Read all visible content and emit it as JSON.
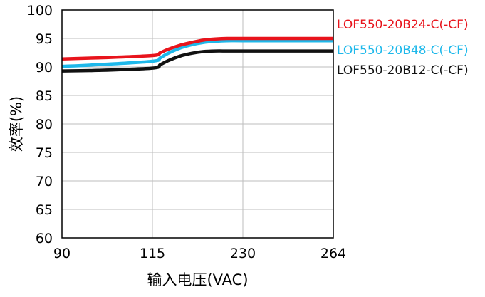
{
  "chart_data": {
    "type": "line",
    "title": "",
    "xlabel": "输入电压(VAC)",
    "ylabel": "效率(%)",
    "categories": [
      "90",
      "115",
      "230",
      "264"
    ],
    "ylim": [
      60,
      100
    ],
    "yticks": [
      60,
      65,
      70,
      75,
      80,
      85,
      90,
      95,
      100
    ],
    "grid": true,
    "legend_placement": "right",
    "series": [
      {
        "name": "LOF550-20B24-C(-CF)",
        "color": "#e8141c",
        "x": [
          90,
          100,
          115,
          125,
          135,
          150,
          165,
          180,
          195,
          210,
          230,
          245,
          264
        ],
        "values": [
          91.4,
          91.6,
          92.0,
          92.5,
          93.1,
          93.8,
          94.3,
          94.7,
          94.9,
          95.0,
          95.0,
          95.0,
          95.0
        ]
      },
      {
        "name": "LOF550-20B48-C(-CF)",
        "color": "#1eb8ea",
        "x": [
          90,
          100,
          115,
          125,
          135,
          150,
          165,
          180,
          195,
          210,
          230,
          245,
          264
        ],
        "values": [
          90.1,
          90.4,
          91.0,
          91.6,
          92.4,
          93.3,
          93.9,
          94.3,
          94.5,
          94.6,
          94.6,
          94.6,
          94.6
        ]
      },
      {
        "name": "LOF550-20B12-C(-CF)",
        "color": "#111111",
        "x": [
          90,
          100,
          115,
          125,
          135,
          150,
          165,
          180,
          195,
          210,
          230,
          245,
          264
        ],
        "values": [
          89.3,
          89.4,
          89.8,
          90.4,
          91.1,
          91.9,
          92.4,
          92.7,
          92.8,
          92.8,
          92.8,
          92.8,
          92.8
        ]
      }
    ]
  }
}
